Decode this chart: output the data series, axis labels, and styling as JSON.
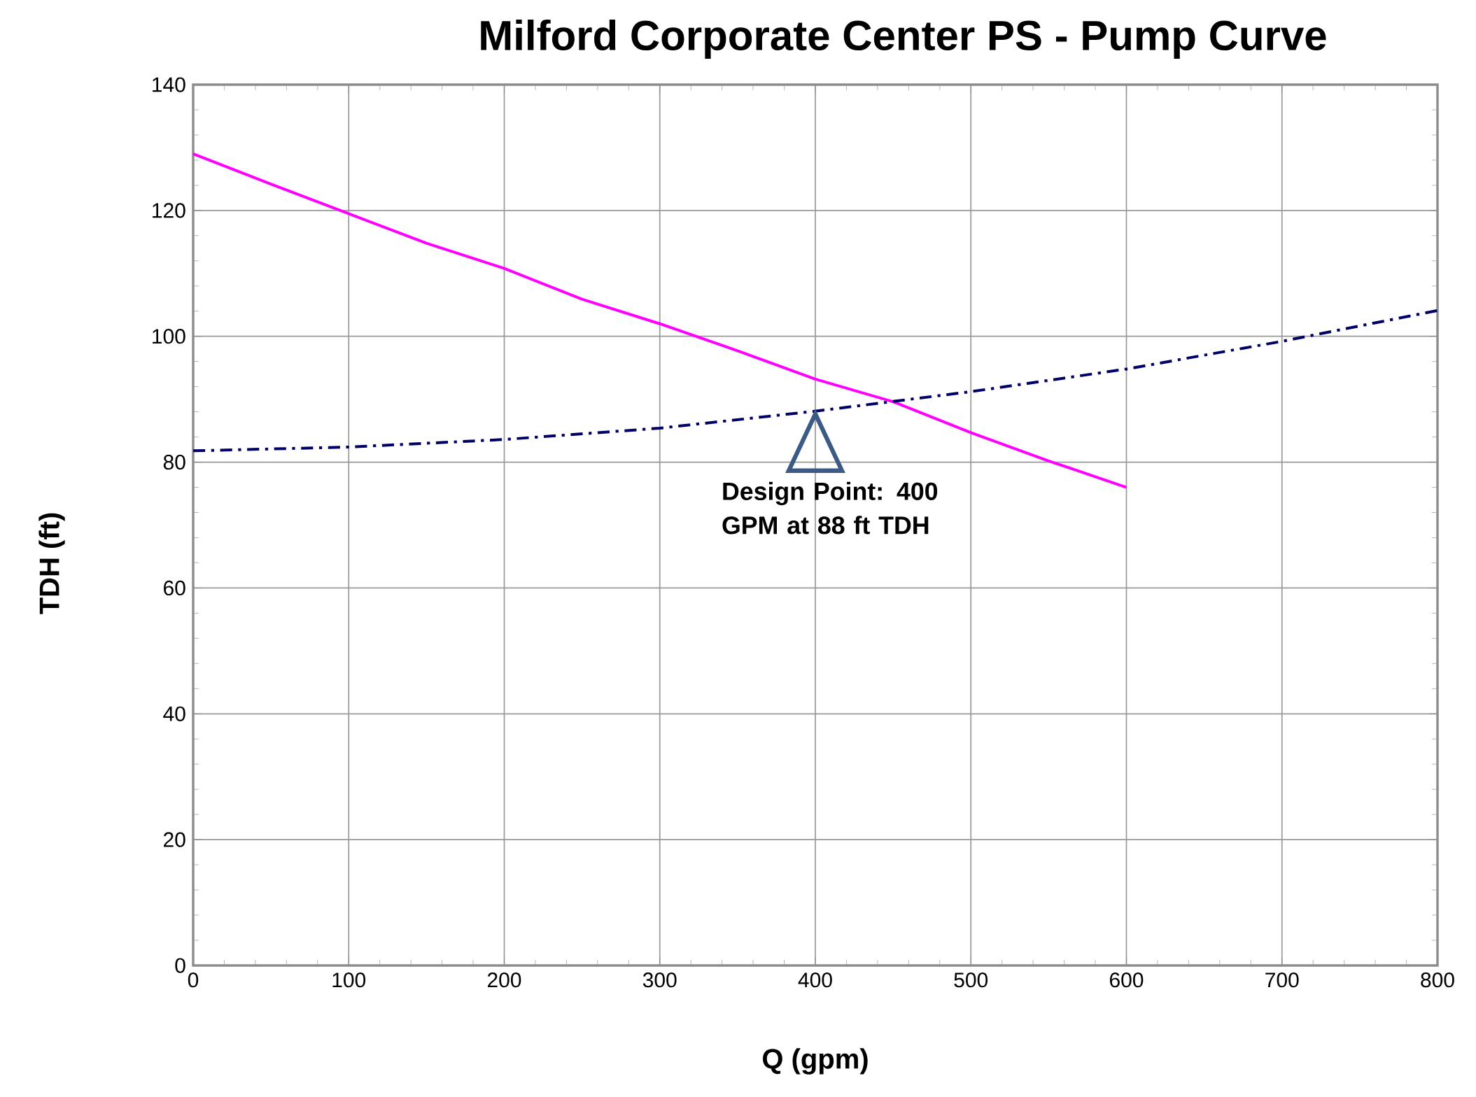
{
  "chart_data": {
    "type": "line",
    "title": "Milford Corporate Center PS - Pump Curve",
    "xlabel": "Q (gpm)",
    "ylabel": "TDH (ft)",
    "xlim": [
      0,
      800
    ],
    "xticks": [
      0,
      100,
      200,
      300,
      400,
      500,
      600,
      700,
      800
    ],
    "ylim": [
      0,
      140
    ],
    "yticks": [
      0,
      20,
      40,
      60,
      80,
      100,
      120,
      140
    ],
    "grid": true,
    "series": [
      {
        "color": "#ff00ff",
        "line_style": "solid",
        "x": [
          0,
          50,
          100,
          150,
          200,
          250,
          300,
          350,
          400,
          450,
          500,
          550,
          600
        ],
        "values": [
          129,
          124.2,
          119.5,
          114.8,
          110.8,
          105.9,
          102,
          97.7,
          93.2,
          89.6,
          84.7,
          80.2,
          76
        ]
      },
      {
        "color": "#000066",
        "line_style": "dashdot",
        "x": [
          0,
          100,
          200,
          300,
          400,
          500,
          600,
          700,
          800
        ],
        "values": [
          81.8,
          82.4,
          83.6,
          85.4,
          88.1,
          91.2,
          94.8,
          99.2,
          104.1
        ]
      }
    ],
    "annotations": [
      {
        "text": "Design Point: 400 GPM at 88 ft TDH",
        "x": 400,
        "y": 88
      }
    ]
  }
}
